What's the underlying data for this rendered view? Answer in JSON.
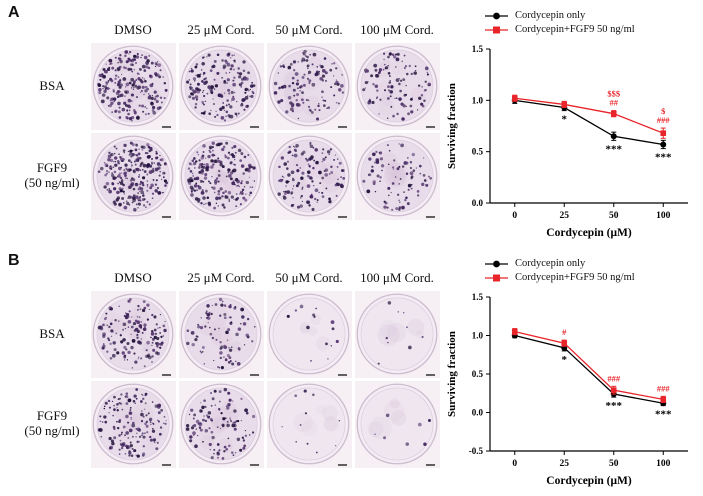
{
  "figure": {
    "panels": [
      {
        "label": "A",
        "col_headers": [
          "DMSO",
          "25 μM Cord.",
          "50 μM Cord.",
          "100 μM Cord."
        ],
        "rows": [
          {
            "label_lines": [
              "BSA",
              ""
            ]
          },
          {
            "label_lines": [
              "FGF9",
              "(50 ng/ml)"
            ]
          }
        ],
        "dish_densities": [
          [
            230,
            185,
            120,
            105
          ],
          [
            265,
            215,
            135,
            85
          ]
        ]
      },
      {
        "label": "B",
        "col_headers": [
          "DMSO",
          "25 μM Cord.",
          "50 μM Cord.",
          "100 μM Cord."
        ],
        "rows": [
          {
            "label_lines": [
              "BSA",
              ""
            ]
          },
          {
            "label_lines": [
              "FGF9",
              "(50 ng/ml)"
            ]
          }
        ],
        "dish_densities": [
          [
            150,
            95,
            14,
            9
          ],
          [
            160,
            115,
            11,
            7
          ]
        ]
      }
    ]
  },
  "chart_data": [
    {
      "type": "line",
      "title": "",
      "xlabel": "Cordycepin (μM)",
      "ylabel": "Surviving fraction",
      "categories": [
        "0",
        "25",
        "50",
        "100"
      ],
      "ylim": [
        0,
        1.5
      ],
      "yticks": [
        0,
        0.5,
        1,
        1.5
      ],
      "ytick_labels": [
        "0.0",
        "0.5",
        "1.0",
        "1.5"
      ],
      "grid": false,
      "legend_position": "top",
      "series": [
        {
          "name": "Cordycepin only",
          "color": "#000000",
          "marker": "circle",
          "values": [
            1.0,
            0.93,
            0.65,
            0.57
          ],
          "errors": [
            0.03,
            0.03,
            0.04,
            0.04
          ]
        },
        {
          "name": "Cordycepin+FGF9 50 ng/ml",
          "color": "#e8252a",
          "marker": "square",
          "values": [
            1.02,
            0.96,
            0.87,
            0.68
          ],
          "errors": [
            0.03,
            0.03,
            0.03,
            0.05
          ]
        }
      ],
      "annotations": [
        {
          "cat": 1,
          "series": 0,
          "pos": "below",
          "lines": [
            "*"
          ],
          "color": "#000000"
        },
        {
          "cat": 2,
          "series": 0,
          "pos": "below",
          "lines": [
            "***"
          ],
          "color": "#000000"
        },
        {
          "cat": 3,
          "series": 0,
          "pos": "below",
          "lines": [
            "***"
          ],
          "color": "#000000"
        },
        {
          "cat": 2,
          "series": 1,
          "pos": "above",
          "lines": [
            "$$$",
            "##"
          ],
          "color": "#e8252a"
        },
        {
          "cat": 3,
          "series": 1,
          "pos": "above",
          "lines": [
            "$",
            "###"
          ],
          "color": "#e8252a"
        }
      ]
    },
    {
      "type": "line",
      "title": "",
      "xlabel": "Cordycepin (μM)",
      "ylabel": "Surviving fraction",
      "categories": [
        "0",
        "25",
        "50",
        "100"
      ],
      "ylim": [
        -0.5,
        1.5
      ],
      "yticks": [
        -0.5,
        0,
        0.5,
        1,
        1.5
      ],
      "ytick_labels": [
        "-0.5",
        "0.0",
        "0.5",
        "1.0",
        "1.5"
      ],
      "grid": false,
      "legend_position": "top",
      "series": [
        {
          "name": "Cordycepin only",
          "color": "#000000",
          "marker": "circle",
          "values": [
            1.0,
            0.84,
            0.24,
            0.12
          ],
          "errors": [
            0.03,
            0.04,
            0.04,
            0.03
          ]
        },
        {
          "name": "Cordycepin+FGF9 50 ng/ml",
          "color": "#e8252a",
          "marker": "square",
          "values": [
            1.05,
            0.9,
            0.29,
            0.17
          ],
          "errors": [
            0.04,
            0.04,
            0.05,
            0.04
          ]
        }
      ],
      "annotations": [
        {
          "cat": 1,
          "series": 1,
          "pos": "above",
          "lines": [
            "#"
          ],
          "color": "#e8252a"
        },
        {
          "cat": 2,
          "series": 1,
          "pos": "above",
          "lines": [
            "###"
          ],
          "color": "#e8252a"
        },
        {
          "cat": 3,
          "series": 1,
          "pos": "above",
          "lines": [
            "###"
          ],
          "color": "#e8252a"
        },
        {
          "cat": 1,
          "series": 0,
          "pos": "below",
          "lines": [
            "*"
          ],
          "color": "#000000"
        },
        {
          "cat": 2,
          "series": 0,
          "pos": "below",
          "lines": [
            "***"
          ],
          "color": "#000000"
        },
        {
          "cat": 3,
          "series": 0,
          "pos": "below",
          "lines": [
            "***"
          ],
          "color": "#000000"
        }
      ]
    }
  ]
}
